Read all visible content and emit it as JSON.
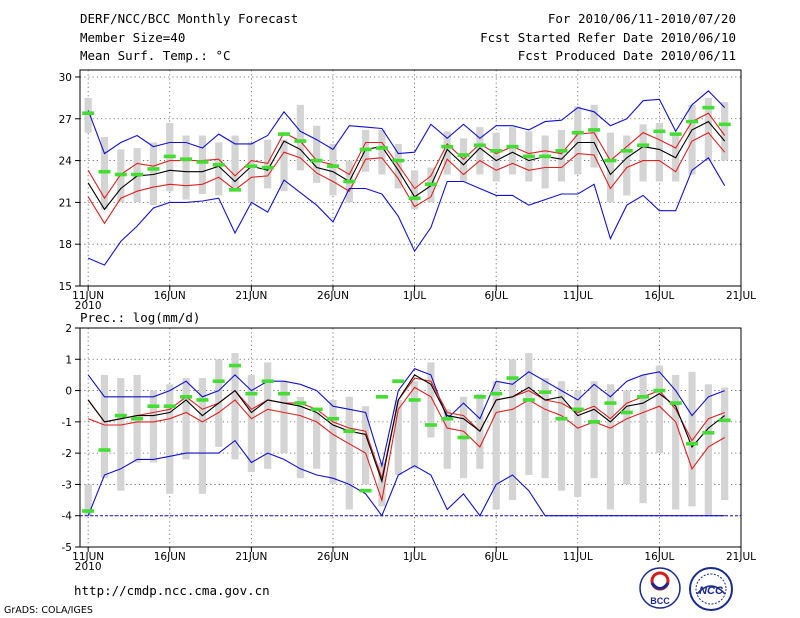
{
  "header": {
    "title": "DERF/NCC/BCC Monthly Forecast",
    "member_size": "Member Size=40",
    "variable": "Mean Surf. Temp.: °C",
    "forecast_period": "For 2010/06/11-2010/07/20",
    "start_date": "Fcst Started Refer Date 2010/06/10",
    "produced_date": "Fcst Produced Date 2010/06/11"
  },
  "footer": {
    "url": "http://cmdp.ncc.cma.gov.cn",
    "credit": "GrADS: COLA/IGES",
    "logo_bcc": "BCC",
    "logo_ncc": "NCC"
  },
  "colors": {
    "box": "#d4d4d4",
    "obs": "#44dd33",
    "mean": "#000000",
    "inner": "#dd2222",
    "outer": "#1111cc",
    "grid": "#555555"
  },
  "chart_data": [
    {
      "type": "line",
      "title": "Mean Surf. Temp.: °C",
      "x_tick_labels": [
        "11JUN",
        "16JUN",
        "21JUN",
        "26JUN",
        "1JUL",
        "6JUL",
        "11JUL",
        "16JUL",
        "21JUL"
      ],
      "x_tick_days": [
        0,
        5,
        10,
        15,
        20,
        25,
        30,
        35,
        40
      ],
      "year_label": "2010",
      "xlim": [
        -0.5,
        40
      ],
      "ylim": [
        15,
        30.5
      ],
      "y_ticks": [
        15,
        18,
        21,
        24,
        27,
        30
      ],
      "box_low": [
        26.0,
        20.5,
        21.0,
        21.0,
        20.8,
        21.8,
        21.2,
        21.6,
        21.5,
        21.8,
        21.0,
        22.0,
        21.8,
        23.3,
        22.4,
        21.5,
        21.0,
        23.2,
        23.0,
        22.0,
        20.5,
        21.0,
        23.0,
        22.5,
        23.0,
        22.5,
        23.0,
        22.5,
        22.0,
        22.5,
        23.0,
        23.5,
        21.0,
        21.5,
        22.5,
        22.5,
        22.5,
        23.0,
        24.0,
        24.0
      ],
      "box_high": [
        28.5,
        25.7,
        24.8,
        24.9,
        25.3,
        26.7,
        25.8,
        25.8,
        25.3,
        25.8,
        25.3,
        25.5,
        25.5,
        28.0,
        26.5,
        25.2,
        24.0,
        26.2,
        26.2,
        25.2,
        23.3,
        23.5,
        26.1,
        25.6,
        26.4,
        26.0,
        26.4,
        26.1,
        25.8,
        26.2,
        27.9,
        28.0,
        26.0,
        25.8,
        26.6,
        26.7,
        25.8,
        28.0,
        28.5,
        28.2
      ],
      "series": [
        {
          "name": "outer-upper",
          "values": [
            27.6,
            24.5,
            25.3,
            25.8,
            25.0,
            25.3,
            25.3,
            24.9,
            25.9,
            25.2,
            25.2,
            25.8,
            27.5,
            26.1,
            25.5,
            24.8,
            26.5,
            26.4,
            26.3,
            24.5,
            24.6,
            26.6,
            25.6,
            26.6,
            25.6,
            26.5,
            26.5,
            26.2,
            26.8,
            26.9,
            27.8,
            27.5,
            26.5,
            27.0,
            28.3,
            28.4,
            26.1,
            28.0,
            29.0,
            27.8
          ]
        },
        {
          "name": "inner-upper",
          "values": [
            23.3,
            21.3,
            23.0,
            23.8,
            23.6,
            24.0,
            24.0,
            24.0,
            24.1,
            22.9,
            24.0,
            23.8,
            26.0,
            25.4,
            24.0,
            23.7,
            23.0,
            25.3,
            25.3,
            23.7,
            22.0,
            22.9,
            25.2,
            24.1,
            25.2,
            24.5,
            25.0,
            24.5,
            24.7,
            24.5,
            25.9,
            26.0,
            24.0,
            25.0,
            26.0,
            25.5,
            24.9,
            26.8,
            27.4,
            25.8
          ]
        },
        {
          "name": "ensemble-mean",
          "values": [
            22.4,
            20.5,
            22.0,
            22.9,
            23.0,
            23.3,
            23.2,
            23.2,
            23.6,
            22.5,
            23.6,
            23.3,
            25.4,
            24.8,
            23.5,
            23.2,
            22.5,
            24.8,
            25.0,
            23.3,
            21.4,
            22.2,
            24.8,
            23.7,
            24.9,
            24.0,
            24.6,
            24.0,
            24.3,
            24.1,
            25.3,
            25.3,
            23.0,
            24.2,
            25.0,
            24.8,
            24.2,
            26.2,
            26.8,
            25.4
          ]
        },
        {
          "name": "inner-lower",
          "values": [
            21.4,
            19.5,
            21.3,
            21.8,
            22.1,
            22.3,
            22.2,
            22.3,
            22.8,
            21.9,
            22.8,
            22.9,
            24.6,
            24.2,
            23.1,
            22.5,
            21.8,
            24.1,
            24.2,
            22.7,
            20.7,
            21.4,
            24.1,
            23.0,
            24.0,
            23.3,
            23.8,
            23.3,
            23.5,
            23.5,
            24.5,
            24.4,
            22.0,
            23.5,
            24.0,
            24.0,
            23.2,
            25.4,
            26.0,
            24.6
          ]
        },
        {
          "name": "outer-lower",
          "values": [
            17.0,
            16.5,
            18.2,
            19.3,
            20.6,
            21.0,
            21.0,
            21.1,
            21.3,
            18.8,
            21.0,
            20.3,
            22.6,
            21.7,
            20.8,
            19.6,
            22.0,
            22.0,
            21.6,
            20.0,
            17.5,
            19.2,
            22.5,
            22.5,
            22.0,
            21.5,
            21.5,
            20.8,
            21.2,
            21.6,
            21.6,
            22.3,
            18.4,
            20.8,
            21.5,
            20.4,
            20.4,
            23.3,
            24.2,
            22.2
          ]
        },
        {
          "name": "observation",
          "values": [
            27.4,
            23.2,
            23.0,
            23.0,
            23.4,
            24.3,
            24.1,
            23.9,
            23.7,
            21.9,
            23.6,
            23.5,
            25.9,
            25.4,
            24.0,
            23.6,
            22.5,
            24.8,
            24.9,
            24.0,
            21.3,
            22.3,
            25.0,
            24.4,
            25.1,
            24.7,
            25.0,
            24.3,
            24.3,
            24.7,
            26.0,
            26.2,
            24.0,
            24.7,
            25.1,
            26.1,
            25.9,
            26.8,
            27.8,
            26.6
          ]
        }
      ]
    },
    {
      "type": "line",
      "title": "Prec.: log(mm/d)",
      "x_tick_labels": [
        "11JUN",
        "16JUN",
        "21JUN",
        "26JUN",
        "1JUL",
        "6JUL",
        "11JUL",
        "16JUL",
        "21JUL"
      ],
      "x_tick_days": [
        0,
        5,
        10,
        15,
        20,
        25,
        30,
        35,
        40
      ],
      "year_label": "2010",
      "xlim": [
        -0.5,
        40
      ],
      "ylim": [
        -5,
        2
      ],
      "y_ticks": [
        -5,
        -4,
        -3,
        -2,
        -1,
        0,
        1,
        2
      ],
      "box_low": [
        -4.0,
        -2.8,
        -3.2,
        -2.3,
        -2.3,
        -3.3,
        -2.2,
        -3.3,
        -1.8,
        -2.2,
        -2.6,
        -2.5,
        -2.0,
        -2.8,
        -2.5,
        -3.0,
        -3.8,
        -3.0,
        -3.7,
        -2.7,
        -2.5,
        -1.5,
        -2.5,
        -2.8,
        -2.5,
        -3.8,
        -3.5,
        -2.7,
        -2.8,
        -3.2,
        -3.4,
        -2.8,
        -3.8,
        -3.0,
        -3.6,
        -2.0,
        -3.8,
        -3.7,
        -4.0,
        -3.5
      ],
      "box_high": [
        -3.0,
        0.5,
        0.4,
        0.5,
        0.0,
        0.2,
        0.4,
        0.4,
        1.0,
        1.2,
        0.5,
        0.9,
        0.3,
        -0.2,
        -0.7,
        -0.3,
        -0.2,
        -0.5,
        -2.3,
        -0.3,
        0.3,
        0.9,
        -0.6,
        -0.2,
        -0.1,
        0.3,
        1.0,
        1.2,
        0.4,
        0.3,
        0.0,
        0.3,
        0.2,
        0.0,
        0.5,
        0.8,
        0.5,
        0.6,
        0.2,
        0.1
      ],
      "series": [
        {
          "name": "outer-upper",
          "values": [
            0.5,
            -0.2,
            -0.2,
            -0.2,
            -0.2,
            0.0,
            0.3,
            -0.2,
            0.0,
            0.5,
            0.0,
            0.3,
            0.3,
            0.2,
            0.0,
            -0.5,
            -0.6,
            -0.7,
            -2.4,
            0.0,
            0.7,
            0.5,
            -0.9,
            -0.4,
            -0.9,
            0.3,
            0.2,
            0.6,
            0.3,
            0.0,
            -0.3,
            0.2,
            -0.2,
            0.3,
            0.5,
            0.6,
            0.0,
            -0.8,
            -0.2,
            0.0
          ]
        },
        {
          "name": "inner-upper",
          "values": [
            -0.3,
            -1.0,
            -0.9,
            -0.8,
            -0.7,
            -0.6,
            -0.2,
            -0.6,
            -0.4,
            0.0,
            -0.6,
            -0.3,
            -0.4,
            -0.4,
            -0.6,
            -1.0,
            -1.2,
            -1.3,
            -2.8,
            -0.3,
            0.4,
            0.3,
            -0.7,
            -0.8,
            -1.3,
            -0.3,
            -0.2,
            0.0,
            -0.3,
            -0.4,
            -0.7,
            -0.5,
            -0.9,
            -0.4,
            -0.2,
            0.0,
            -0.6,
            -1.6,
            -0.9,
            -0.7
          ]
        },
        {
          "name": "ensemble-mean",
          "values": [
            -0.3,
            -1.0,
            -0.9,
            -0.8,
            -0.8,
            -0.7,
            -0.3,
            -0.8,
            -0.4,
            0.0,
            -0.7,
            -0.3,
            -0.4,
            -0.5,
            -0.7,
            -1.1,
            -1.3,
            -1.4,
            -2.9,
            -0.3,
            0.5,
            0.2,
            -0.8,
            -0.9,
            -1.3,
            -0.3,
            -0.2,
            0.1,
            -0.3,
            -0.2,
            -0.8,
            -0.6,
            -1.0,
            -0.5,
            -0.4,
            -0.1,
            -0.5,
            -1.8,
            -1.2,
            -0.8
          ]
        },
        {
          "name": "inner-lower",
          "values": [
            -0.9,
            -1.1,
            -1.1,
            -1.0,
            -1.0,
            -0.9,
            -0.7,
            -1.0,
            -0.7,
            -0.3,
            -0.9,
            -0.6,
            -0.7,
            -0.8,
            -1.0,
            -1.4,
            -1.7,
            -2.0,
            -3.5,
            -0.6,
            0.1,
            -0.2,
            -1.2,
            -1.3,
            -1.8,
            -0.7,
            -0.6,
            -0.3,
            -0.6,
            -0.8,
            -1.2,
            -1.0,
            -1.2,
            -0.9,
            -0.7,
            -0.5,
            -1.0,
            -2.5,
            -1.8,
            -1.5
          ]
        },
        {
          "name": "outer-lower",
          "values": [
            -4.0,
            -2.7,
            -2.5,
            -2.2,
            -2.2,
            -2.1,
            -2.0,
            -2.0,
            -2.0,
            -1.6,
            -2.3,
            -2.0,
            -2.2,
            -2.5,
            -2.7,
            -2.8,
            -3.0,
            -3.3,
            -4.0,
            -2.7,
            -2.4,
            -2.7,
            -3.8,
            -3.3,
            -4.0,
            -3.0,
            -2.7,
            -3.2,
            -4.0,
            -4.0,
            -4.0,
            -4.0,
            -4.0,
            -4.0,
            -4.0,
            -4.0,
            -4.0,
            -4.0,
            -4.0,
            -4.0
          ]
        },
        {
          "name": "observation",
          "values": [
            -3.85,
            -1.9,
            -0.8,
            -0.9,
            -0.5,
            -0.5,
            -0.2,
            -0.3,
            0.3,
            0.8,
            -0.1,
            0.3,
            -0.1,
            -0.4,
            -0.6,
            -0.9,
            -1.3,
            -3.2,
            -0.2,
            0.3,
            -0.3,
            -1.1,
            -0.9,
            -1.5,
            -0.2,
            -0.1,
            0.4,
            -0.3,
            -0.05,
            -0.9,
            -0.6,
            -1.0,
            -0.4,
            -0.7,
            -0.2,
            0.0,
            -0.4,
            -1.7,
            -1.35,
            -0.95
          ]
        }
      ]
    }
  ]
}
